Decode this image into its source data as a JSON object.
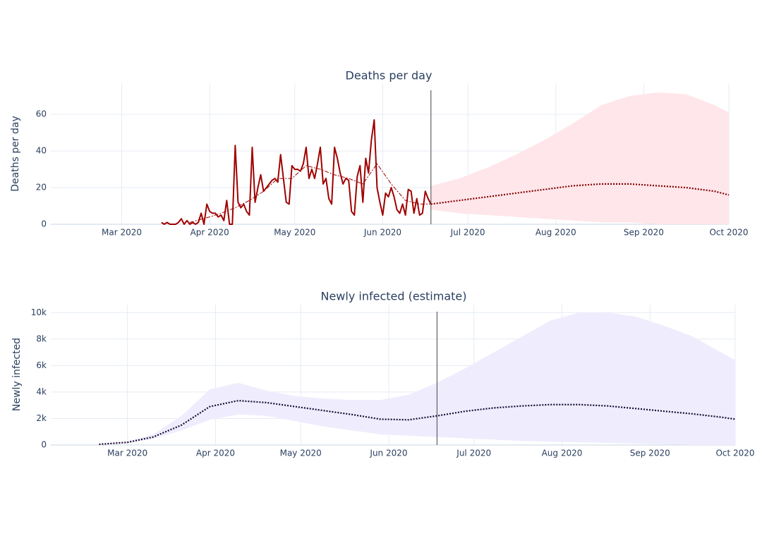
{
  "chart_data": [
    {
      "type": "line",
      "title": "Deaths per day",
      "ylabel": "Deaths per day",
      "xlim": [
        "2020-02-05",
        "2020-10-01"
      ],
      "ylim": [
        0,
        77
      ],
      "xticks": [
        {
          "value": "2020-03-01",
          "label": "Mar 2020"
        },
        {
          "value": "2020-04-01",
          "label": "Apr 2020"
        },
        {
          "value": "2020-05-01",
          "label": "May 2020"
        },
        {
          "value": "2020-06-01",
          "label": "Jun 2020"
        },
        {
          "value": "2020-07-01",
          "label": "Jul 2020"
        },
        {
          "value": "2020-08-01",
          "label": "Aug 2020"
        },
        {
          "value": "2020-09-01",
          "label": "Sep 2020"
        },
        {
          "value": "2020-10-01",
          "label": "Oct 2020"
        }
      ],
      "yticks": [
        0,
        20,
        40,
        60
      ],
      "grid": true,
      "marker_date": "2020-06-18",
      "band": {
        "color": "#ffe6ea",
        "x": [
          "2020-06-18",
          "2020-06-28",
          "2020-07-08",
          "2020-07-18",
          "2020-07-28",
          "2020-08-07",
          "2020-08-17",
          "2020-08-27",
          "2020-09-06",
          "2020-09-16",
          "2020-09-26",
          "2020-10-01"
        ],
        "lower": [
          8,
          6,
          5,
          4,
          3,
          2,
          1,
          1,
          0,
          0,
          0,
          0
        ],
        "upper": [
          21,
          25,
          31,
          38,
          46,
          55,
          65,
          70,
          72,
          71,
          65,
          61
        ]
      },
      "series": [
        {
          "color": "#a00000",
          "style": "solid",
          "x": [
            "2020-03-15",
            "2020-03-16",
            "2020-03-17",
            "2020-03-18",
            "2020-03-19",
            "2020-03-20",
            "2020-03-21",
            "2020-03-22",
            "2020-03-23",
            "2020-03-24",
            "2020-03-25",
            "2020-03-26",
            "2020-03-27",
            "2020-03-28",
            "2020-03-29",
            "2020-03-30",
            "2020-03-31",
            "2020-04-01",
            "2020-04-02",
            "2020-04-03",
            "2020-04-04",
            "2020-04-05",
            "2020-04-06",
            "2020-04-07",
            "2020-04-08",
            "2020-04-09",
            "2020-04-10",
            "2020-04-11",
            "2020-04-12",
            "2020-04-13",
            "2020-04-14",
            "2020-04-15",
            "2020-04-16",
            "2020-04-17",
            "2020-04-18",
            "2020-04-19",
            "2020-04-20",
            "2020-04-21",
            "2020-04-22",
            "2020-04-23",
            "2020-04-24",
            "2020-04-25",
            "2020-04-26",
            "2020-04-27",
            "2020-04-28",
            "2020-04-29",
            "2020-04-30",
            "2020-05-01",
            "2020-05-02",
            "2020-05-03",
            "2020-05-04",
            "2020-05-05",
            "2020-05-06",
            "2020-05-07",
            "2020-05-08",
            "2020-05-09",
            "2020-05-10",
            "2020-05-11",
            "2020-05-12",
            "2020-05-13",
            "2020-05-14",
            "2020-05-15",
            "2020-05-16",
            "2020-05-17",
            "2020-05-18",
            "2020-05-19",
            "2020-05-20",
            "2020-05-21",
            "2020-05-22",
            "2020-05-23",
            "2020-05-24",
            "2020-05-25",
            "2020-05-26",
            "2020-05-27",
            "2020-05-28",
            "2020-05-29",
            "2020-05-30",
            "2020-05-31",
            "2020-06-01",
            "2020-06-02",
            "2020-06-03",
            "2020-06-04",
            "2020-06-05",
            "2020-06-06",
            "2020-06-07",
            "2020-06-08",
            "2020-06-09",
            "2020-06-10",
            "2020-06-11",
            "2020-06-12",
            "2020-06-13",
            "2020-06-14",
            "2020-06-15",
            "2020-06-16",
            "2020-06-17",
            "2020-06-18"
          ],
          "values": [
            1,
            0,
            1,
            0,
            0,
            0,
            1,
            3,
            0,
            2,
            0,
            1,
            0,
            1,
            6,
            0,
            11,
            7,
            6,
            6,
            4,
            5,
            2,
            13,
            0,
            0,
            43,
            12,
            9,
            11,
            7,
            5,
            42,
            12,
            20,
            27,
            18,
            20,
            22,
            24,
            25,
            23,
            38,
            25,
            12,
            11,
            32,
            30,
            30,
            29,
            33,
            42,
            25,
            30,
            25,
            33,
            42,
            22,
            25,
            14,
            11,
            42,
            36,
            28,
            22,
            25,
            24,
            7,
            5,
            26,
            32,
            12,
            36,
            28,
            46,
            57,
            20,
            12,
            5,
            17,
            15,
            20,
            15,
            8,
            6,
            11,
            5,
            19,
            18,
            6,
            14,
            5,
            6,
            18,
            14,
            11
          ]
        },
        {
          "color": "#a00000",
          "style": "dashdot",
          "x": [
            "2020-03-25",
            "2020-04-01",
            "2020-04-05",
            "2020-04-10",
            "2020-04-15",
            "2020-04-20",
            "2020-04-25",
            "2020-04-30",
            "2020-05-05",
            "2020-05-10",
            "2020-05-15",
            "2020-05-20",
            "2020-05-25",
            "2020-05-30",
            "2020-06-04",
            "2020-06-09",
            "2020-06-14",
            "2020-06-18"
          ],
          "values": [
            1,
            4,
            6,
            9,
            13,
            18,
            25,
            25,
            32,
            30,
            27,
            25,
            22,
            33,
            22,
            13,
            11,
            11
          ]
        },
        {
          "color": "#800000",
          "style": "dot",
          "x": [
            "2020-06-18",
            "2020-06-28",
            "2020-07-08",
            "2020-07-18",
            "2020-07-28",
            "2020-08-07",
            "2020-08-17",
            "2020-08-27",
            "2020-09-06",
            "2020-09-16",
            "2020-09-26",
            "2020-10-01"
          ],
          "values": [
            11,
            13,
            15,
            17,
            19,
            21,
            22,
            22,
            21,
            20,
            18,
            16
          ]
        }
      ]
    },
    {
      "type": "line",
      "title": "Newly infected (estimate)",
      "ylabel": "Newly infected",
      "xlim": [
        "2020-02-03",
        "2020-10-01"
      ],
      "ylim": [
        0,
        10600
      ],
      "xticks": [
        {
          "value": "2020-03-01",
          "label": "Mar 2020"
        },
        {
          "value": "2020-04-01",
          "label": "Apr 2020"
        },
        {
          "value": "2020-05-01",
          "label": "May 2020"
        },
        {
          "value": "2020-06-01",
          "label": "Jun 2020"
        },
        {
          "value": "2020-07-01",
          "label": "Jul 2020"
        },
        {
          "value": "2020-08-01",
          "label": "Aug 2020"
        },
        {
          "value": "2020-09-01",
          "label": "Sep 2020"
        },
        {
          "value": "2020-10-01",
          "label": "Oct 2020"
        }
      ],
      "yticks": [
        0,
        {
          "value": 2000,
          "label": "2k"
        },
        {
          "value": 4000,
          "label": "4k"
        },
        {
          "value": 6000,
          "label": "6k"
        },
        {
          "value": 8000,
          "label": "8k"
        },
        {
          "value": 10000,
          "label": "10k"
        }
      ],
      "grid": true,
      "marker_date": "2020-06-18",
      "band": {
        "color": "#efedfd",
        "x": [
          "2020-02-20",
          "2020-03-01",
          "2020-03-10",
          "2020-03-20",
          "2020-03-30",
          "2020-04-09",
          "2020-04-19",
          "2020-04-29",
          "2020-05-09",
          "2020-05-19",
          "2020-05-29",
          "2020-06-08",
          "2020-06-18",
          "2020-06-28",
          "2020-07-08",
          "2020-07-18",
          "2020-07-28",
          "2020-08-07",
          "2020-08-17",
          "2020-08-27",
          "2020-09-06",
          "2020-09-16",
          "2020-09-26",
          "2020-10-01"
        ],
        "lower": [
          50,
          150,
          450,
          1100,
          1900,
          2300,
          2200,
          1800,
          1400,
          1100,
          800,
          700,
          600,
          500,
          400,
          300,
          250,
          200,
          150,
          100,
          50,
          0,
          0,
          0
        ],
        "upper": [
          50,
          250,
          800,
          2200,
          4200,
          4700,
          4100,
          3700,
          3500,
          3400,
          3400,
          3800,
          4700,
          5800,
          7000,
          8200,
          9400,
          10000,
          10000,
          9700,
          9000,
          8200,
          7000,
          6400
        ]
      },
      "series": [
        {
          "color": "#1a0a33",
          "style": "dot",
          "x": [
            "2020-02-20",
            "2020-03-01",
            "2020-03-10",
            "2020-03-20",
            "2020-03-30",
            "2020-04-09",
            "2020-04-19",
            "2020-04-29",
            "2020-05-09",
            "2020-05-19",
            "2020-05-29",
            "2020-06-08",
            "2020-06-18",
            "2020-06-28",
            "2020-07-08",
            "2020-07-18",
            "2020-07-28",
            "2020-08-07",
            "2020-08-17",
            "2020-08-27",
            "2020-09-06",
            "2020-09-16",
            "2020-09-26",
            "2020-10-01"
          ],
          "values": [
            50,
            200,
            600,
            1500,
            2900,
            3350,
            3200,
            2900,
            2600,
            2300,
            1950,
            1900,
            2200,
            2550,
            2800,
            2950,
            3050,
            3050,
            2950,
            2750,
            2550,
            2350,
            2100,
            1950
          ]
        }
      ]
    }
  ]
}
